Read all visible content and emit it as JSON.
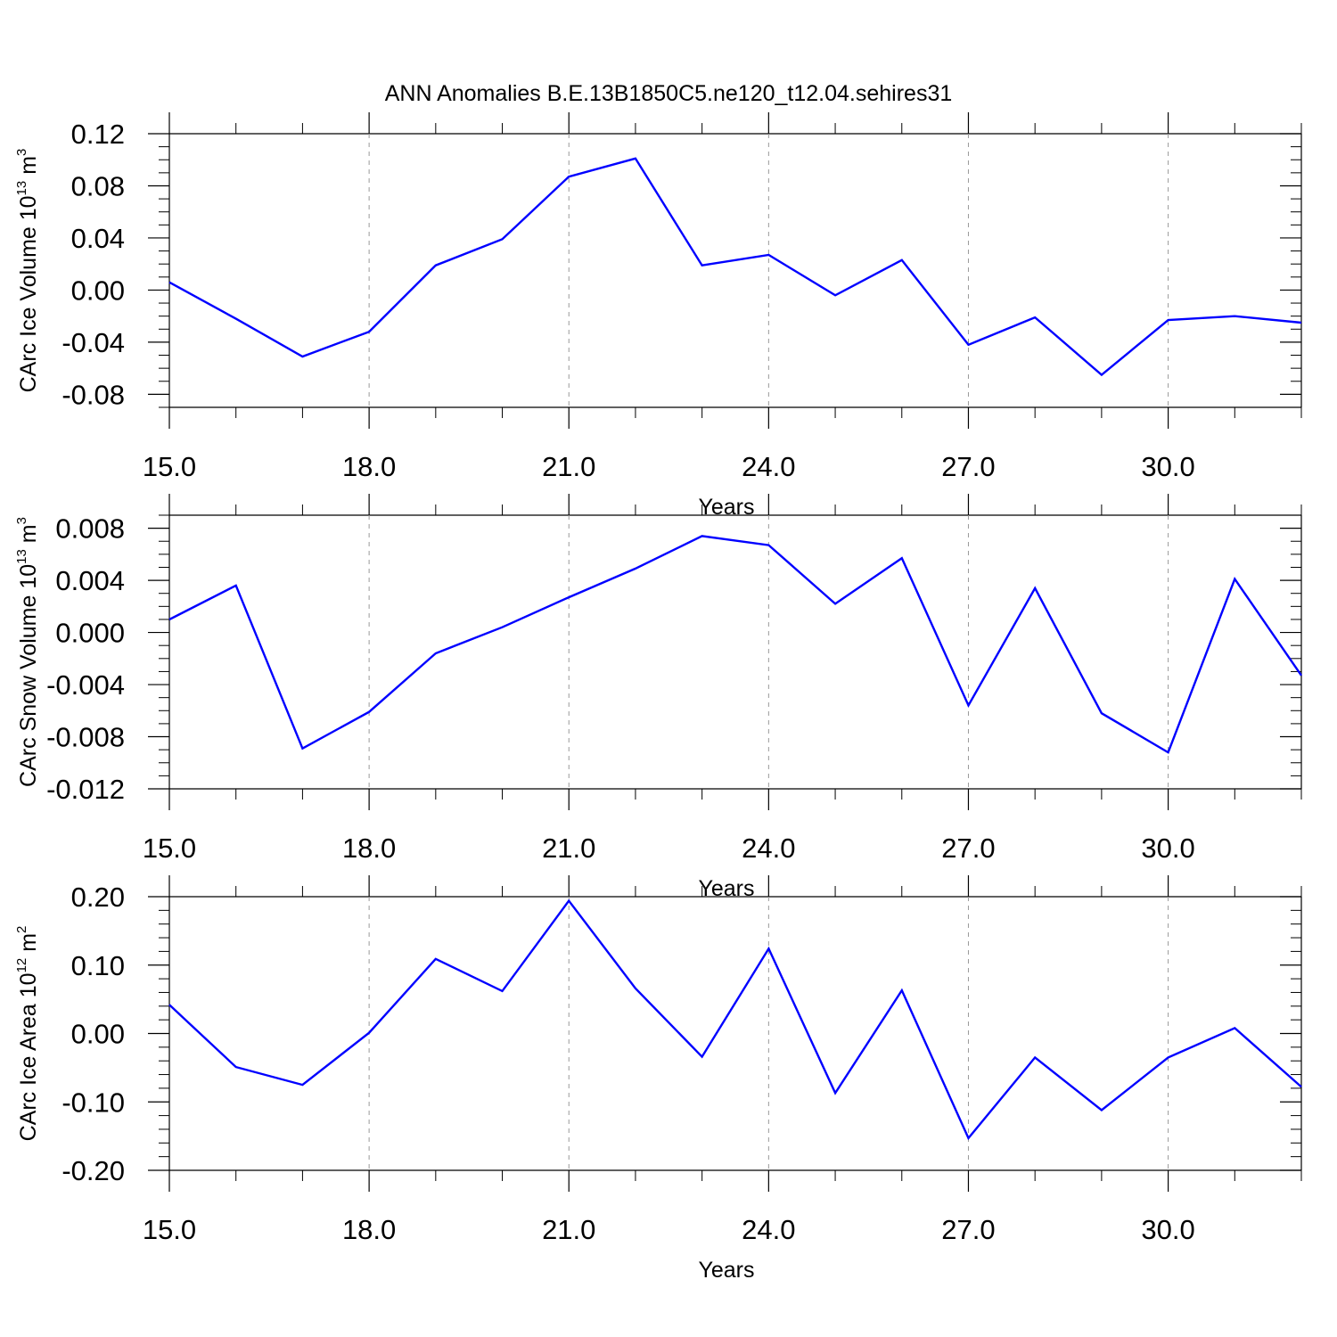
{
  "figure": {
    "title": "ANN Anomalies B.E.13B1850C5.ne120_t12.04.sehires31",
    "line_color": "#0000ff",
    "grid_color": "#9a9a9a"
  },
  "chart_data": [
    {
      "type": "line",
      "title": "ANN Anomalies B.E.13B1850C5.ne120_t12.04.sehires31",
      "xlabel": "Years",
      "ylabel": {
        "base": "CArc Ice Volume 10",
        "exp1": "13",
        "mid": " m",
        "exp2": "3"
      },
      "xlim": [
        15,
        32
      ],
      "ylim": [
        -0.09,
        0.12
      ],
      "xticks": [
        15,
        18,
        21,
        24,
        27,
        30
      ],
      "xtick_labels": [
        "15.0",
        "18.0",
        "21.0",
        "24.0",
        "27.0",
        "30.0"
      ],
      "yticks": [
        -0.08,
        -0.04,
        0.0,
        0.04,
        0.08,
        0.12
      ],
      "ytick_labels": [
        "-0.08",
        "-0.04",
        "0.00",
        "0.04",
        "0.08",
        "0.12"
      ],
      "yminor_step": 0.01,
      "grid": "vertical dashed at major x ticks",
      "series": [
        {
          "x": [
            15,
            16,
            17,
            18,
            19,
            20,
            21,
            22,
            23,
            24,
            25,
            26,
            27,
            28,
            29,
            30,
            31,
            32
          ],
          "values": [
            0.006,
            -0.022,
            -0.051,
            -0.032,
            0.019,
            0.039,
            0.087,
            0.101,
            0.019,
            0.027,
            -0.004,
            0.023,
            -0.042,
            -0.021,
            -0.065,
            -0.023,
            -0.02,
            -0.025
          ]
        }
      ]
    },
    {
      "type": "line",
      "xlabel": "Years",
      "ylabel": {
        "base": "CArc Snow Volume 10",
        "exp1": "13",
        "mid": " m",
        "exp2": "3"
      },
      "xlim": [
        15,
        32
      ],
      "ylim": [
        -0.012,
        0.009
      ],
      "xticks": [
        15,
        18,
        21,
        24,
        27,
        30
      ],
      "xtick_labels": [
        "15.0",
        "18.0",
        "21.0",
        "24.0",
        "27.0",
        "30.0"
      ],
      "yticks": [
        -0.012,
        -0.008,
        -0.004,
        0.0,
        0.004,
        0.008
      ],
      "ytick_labels": [
        "-0.012",
        "-0.008",
        "-0.004",
        "0.000",
        "0.004",
        "0.008"
      ],
      "yminor_step": 0.001,
      "grid": "vertical dashed at major x ticks",
      "series": [
        {
          "x": [
            15,
            16,
            17,
            18,
            19,
            20,
            21,
            22,
            23,
            24,
            25,
            26,
            27,
            28,
            29,
            30,
            31,
            32
          ],
          "values": [
            0.001,
            0.0036,
            -0.0089,
            -0.0061,
            -0.0016,
            0.0004,
            0.0027,
            0.0049,
            0.0074,
            0.0067,
            0.0022,
            0.0057,
            -0.0056,
            0.0034,
            -0.0062,
            -0.0092,
            0.0041,
            -0.0033
          ]
        }
      ]
    },
    {
      "type": "line",
      "xlabel": "Years",
      "ylabel": {
        "base": "CArc Ice Area 10",
        "exp1": "12",
        "mid": " m",
        "exp2": "2"
      },
      "xlim": [
        15,
        32
      ],
      "ylim": [
        -0.2,
        0.2
      ],
      "xticks": [
        15,
        18,
        21,
        24,
        27,
        30
      ],
      "xtick_labels": [
        "15.0",
        "18.0",
        "21.0",
        "24.0",
        "27.0",
        "30.0"
      ],
      "yticks": [
        -0.2,
        -0.1,
        0.0,
        0.1,
        0.2
      ],
      "ytick_labels": [
        "-0.20",
        "-0.10",
        "0.00",
        "0.10",
        "0.20"
      ],
      "yminor_step": 0.02,
      "grid": "vertical dashed at major x ticks",
      "series": [
        {
          "x": [
            15,
            16,
            17,
            18,
            19,
            20,
            21,
            22,
            23,
            24,
            25,
            26,
            27,
            28,
            29,
            30,
            31,
            32
          ],
          "values": [
            0.042,
            -0.049,
            -0.075,
            0.001,
            0.109,
            0.062,
            0.194,
            0.066,
            -0.034,
            0.124,
            -0.087,
            0.063,
            -0.153,
            -0.035,
            -0.112,
            -0.035,
            0.008,
            -0.078
          ]
        }
      ]
    }
  ]
}
